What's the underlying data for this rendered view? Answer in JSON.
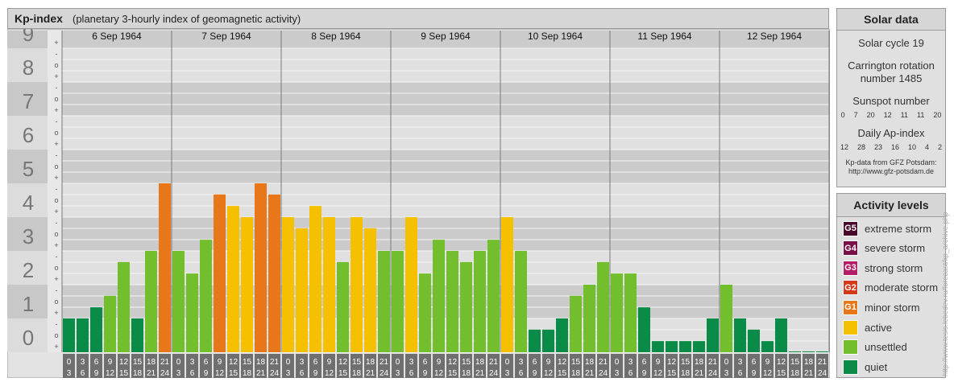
{
  "header": {
    "title": "Kp-index",
    "subtitle": "(planetary 3-hourly index of geomagnetic activity)"
  },
  "solar": {
    "title": "Solar data",
    "cycle": "Solar cycle 19",
    "carrington_line1": "Carrington rotation",
    "carrington_line2": "number 1485",
    "sunspot_title": "Sunspot number",
    "sunspot_values": [
      "0",
      "7",
      "20",
      "12",
      "11",
      "11",
      "20"
    ],
    "ap_title": "Daily Ap-index",
    "ap_values": [
      "12",
      "28",
      "23",
      "16",
      "10",
      "4",
      "2"
    ],
    "source_line1": "Kp-data from GFZ Potsdam:",
    "source_line2": "http://www.gfz-potsdam.de"
  },
  "legend": {
    "title": "Activity levels",
    "items": [
      {
        "badge": "G5",
        "label": "extreme storm",
        "color": "#4a0a2a"
      },
      {
        "badge": "G4",
        "label": "severe storm",
        "color": "#7a0e48"
      },
      {
        "badge": "G3",
        "label": "strong storm",
        "color": "#b51e66"
      },
      {
        "badge": "G2",
        "label": "moderate storm",
        "color": "#d4391a"
      },
      {
        "badge": "G1",
        "label": "minor storm",
        "color": "#e8771a"
      },
      {
        "badge": "",
        "label": "active",
        "color": "#f5c000"
      },
      {
        "badge": "",
        "label": "unsettled",
        "color": "#73be2d"
      },
      {
        "badge": "",
        "label": "quiet",
        "color": "#0b8b48"
      }
    ]
  },
  "watermark": "http://www.tesis.lebedev.ru/forecast/kp_archive.php",
  "chart_data": {
    "type": "bar",
    "title": "Kp-index",
    "days": [
      "6 Sep 1964",
      "7 Sep 1964",
      "8 Sep 1964",
      "9 Sep 1964",
      "10 Sep 1964",
      "11 Sep 1964",
      "12 Sep 1964"
    ],
    "y_major_labels": [
      "0",
      "1",
      "2",
      "3",
      "4",
      "5",
      "6",
      "7",
      "8",
      "9"
    ],
    "y_minor_marks": [
      "+",
      "o",
      "-"
    ],
    "interval_top": [
      "0",
      "3",
      "6",
      "9",
      "12",
      "15",
      "18",
      "21"
    ],
    "interval_bottom": [
      "3",
      "6",
      "9",
      "12",
      "15",
      "18",
      "21",
      "24"
    ],
    "ylim": [
      0,
      9
    ],
    "kp": [
      [
        1.0,
        1.0,
        1.33,
        1.67,
        2.67,
        1.0,
        3.0,
        5.0
      ],
      [
        3.0,
        2.33,
        3.33,
        4.67,
        4.33,
        4.0,
        5.0,
        4.67
      ],
      [
        4.0,
        3.67,
        4.33,
        4.0,
        2.67,
        4.0,
        3.67,
        3.0
      ],
      [
        3.0,
        4.0,
        2.33,
        3.33,
        3.0,
        2.67,
        3.0,
        3.33
      ],
      [
        4.0,
        3.0,
        0.67,
        0.67,
        1.0,
        1.67,
        2.0,
        2.67
      ],
      [
        2.33,
        2.33,
        1.33,
        0.33,
        0.33,
        0.33,
        0.33,
        1.0
      ],
      [
        2.0,
        1.0,
        0.67,
        0.33,
        1.0,
        0.0,
        0.0,
        0.0
      ]
    ],
    "level_colors": {
      "quiet": "#0b8b48",
      "unsettled": "#73be2d",
      "active": "#f5c000",
      "minor_storm": "#e8771a"
    }
  }
}
